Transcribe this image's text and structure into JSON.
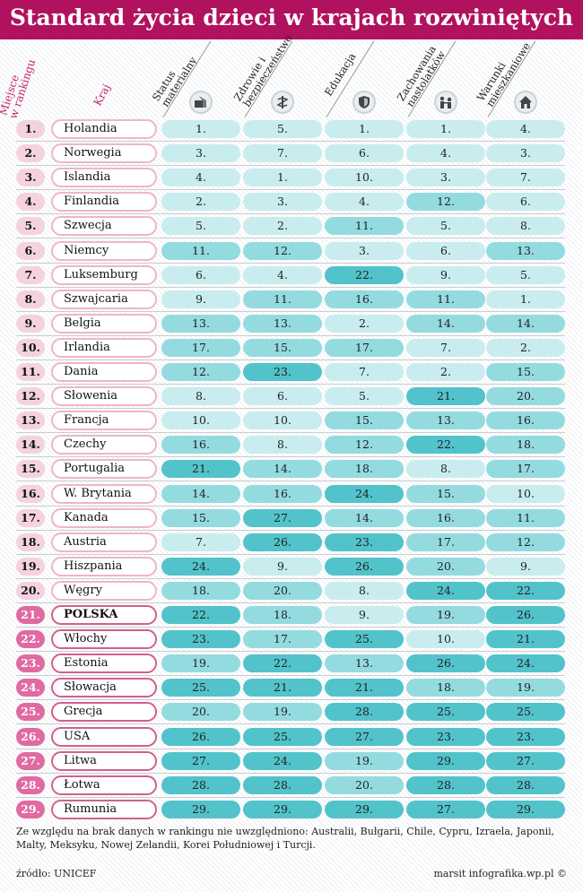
{
  "title": "Standard życia dzieci w krajach rozwiniętych",
  "headers": {
    "rank": "Miejsce w rankingu",
    "rank_line1": "Miejsce",
    "rank_line2": "w rankingu",
    "country": "Kraj",
    "columns": [
      {
        "line1": "Status",
        "line2": "materialny",
        "icon": "wallet-house-icon"
      },
      {
        "line1": "Zdrowie i",
        "line2": "bezpieczeństwo",
        "icon": "caduceus-icon"
      },
      {
        "line1": "Edukacja",
        "line2": "",
        "icon": "shield-icon"
      },
      {
        "line1": "Zachowania",
        "line2": "nastolatków",
        "icon": "teens-icon"
      },
      {
        "line1": "Warunki",
        "line2": "mieszkaniowe",
        "icon": "house-icon"
      }
    ]
  },
  "colors": {
    "title_bar": "#b0125e",
    "rank_light": "#f4d2e0",
    "rank_dark": "#e06aa2",
    "tier1": "#c9ecef",
    "tier2": "#94dbe0",
    "tier3": "#52c3cb"
  },
  "chart_data": {
    "type": "table",
    "columns": [
      "Status materialny",
      "Zdrowie i bezpieczeństwo",
      "Edukacja",
      "Zachowania nastolatków",
      "Warunki mieszkaniowe"
    ],
    "rows": [
      {
        "rank": "1.",
        "country": "Holandia",
        "values": [
          "1.",
          "5.",
          "1.",
          "1.",
          "4."
        ]
      },
      {
        "rank": "2.",
        "country": "Norwegia",
        "values": [
          "3.",
          "7.",
          "6.",
          "4.",
          "3."
        ]
      },
      {
        "rank": "3.",
        "country": "Islandia",
        "values": [
          "4.",
          "1.",
          "10.",
          "3.",
          "7."
        ]
      },
      {
        "rank": "4.",
        "country": "Finlandia",
        "values": [
          "2.",
          "3.",
          "4.",
          "12.",
          "6."
        ]
      },
      {
        "rank": "5.",
        "country": "Szwecja",
        "values": [
          "5.",
          "2.",
          "11.",
          "5.",
          "8."
        ]
      },
      {
        "rank": "6.",
        "country": "Niemcy",
        "values": [
          "11.",
          "12.",
          "3.",
          "6.",
          "13."
        ]
      },
      {
        "rank": "7.",
        "country": "Luksemburg",
        "values": [
          "6.",
          "4.",
          "22.",
          "9.",
          "5."
        ]
      },
      {
        "rank": "8.",
        "country": "Szwajcaria",
        "values": [
          "9.",
          "11.",
          "16.",
          "11.",
          "1."
        ]
      },
      {
        "rank": "9.",
        "country": "Belgia",
        "values": [
          "13.",
          "13.",
          "2.",
          "14.",
          "14."
        ]
      },
      {
        "rank": "10.",
        "country": "Irlandia",
        "values": [
          "17.",
          "15.",
          "17.",
          "7.",
          "2."
        ]
      },
      {
        "rank": "11.",
        "country": "Dania",
        "values": [
          "12.",
          "23.",
          "7.",
          "2.",
          "15."
        ]
      },
      {
        "rank": "12.",
        "country": "Słowenia",
        "values": [
          "8.",
          "6.",
          "5.",
          "21.",
          "20."
        ]
      },
      {
        "rank": "13.",
        "country": "Francja",
        "values": [
          "10.",
          "10.",
          "15.",
          "13.",
          "16."
        ]
      },
      {
        "rank": "14.",
        "country": "Czechy",
        "values": [
          "16.",
          "8.",
          "12.",
          "22.",
          "18."
        ]
      },
      {
        "rank": "15.",
        "country": "Portugalia",
        "values": [
          "21.",
          "14.",
          "18.",
          "8.",
          "17."
        ]
      },
      {
        "rank": "16.",
        "country": "W. Brytania",
        "values": [
          "14.",
          "16.",
          "24.",
          "15.",
          "10."
        ]
      },
      {
        "rank": "17.",
        "country": "Kanada",
        "values": [
          "15.",
          "27.",
          "14.",
          "16.",
          "11."
        ]
      },
      {
        "rank": "18.",
        "country": "Austria",
        "values": [
          "7.",
          "26.",
          "23.",
          "17.",
          "12."
        ]
      },
      {
        "rank": "19.",
        "country": "Hiszpania",
        "values": [
          "24.",
          "9.",
          "26.",
          "20.",
          "9."
        ]
      },
      {
        "rank": "20.",
        "country": "Węgry",
        "values": [
          "18.",
          "20.",
          "8.",
          "24.",
          "22."
        ]
      },
      {
        "rank": "21.",
        "country": "POLSKA",
        "values": [
          "22.",
          "18.",
          "9.",
          "19.",
          "26."
        ]
      },
      {
        "rank": "22.",
        "country": "Włochy",
        "values": [
          "23.",
          "17.",
          "25.",
          "10.",
          "21."
        ]
      },
      {
        "rank": "23.",
        "country": "Estonia",
        "values": [
          "19.",
          "22.",
          "13.",
          "26.",
          "24."
        ]
      },
      {
        "rank": "24.",
        "country": "Słowacja",
        "values": [
          "25.",
          "21.",
          "21.",
          "18.",
          "19."
        ]
      },
      {
        "rank": "25.",
        "country": "Grecja",
        "values": [
          "20.",
          "19.",
          "28.",
          "25.",
          "25."
        ]
      },
      {
        "rank": "26.",
        "country": "USA",
        "values": [
          "26.",
          "25.",
          "27.",
          "23.",
          "23."
        ]
      },
      {
        "rank": "27.",
        "country": "Litwa",
        "values": [
          "27.",
          "24.",
          "19.",
          "29.",
          "27."
        ]
      },
      {
        "rank": "28.",
        "country": "Łotwa",
        "values": [
          "28.",
          "28.",
          "20.",
          "28.",
          "28."
        ]
      },
      {
        "rank": "29.",
        "country": "Rumunia",
        "values": [
          "29.",
          "29.",
          "29.",
          "27.",
          "29."
        ]
      }
    ]
  },
  "footer": {
    "note": "Ze względu na brak danych w rankingu nie uwzględniono: Australii, Bułgarii, Chile, Cypru, Izraela, Japonii, Malty, Meksyku, Nowej Zelandii, Korei Południowej i Turcji.",
    "source": "źródło: UNICEF",
    "credit": "marsit infografika.wp.pl ©"
  }
}
